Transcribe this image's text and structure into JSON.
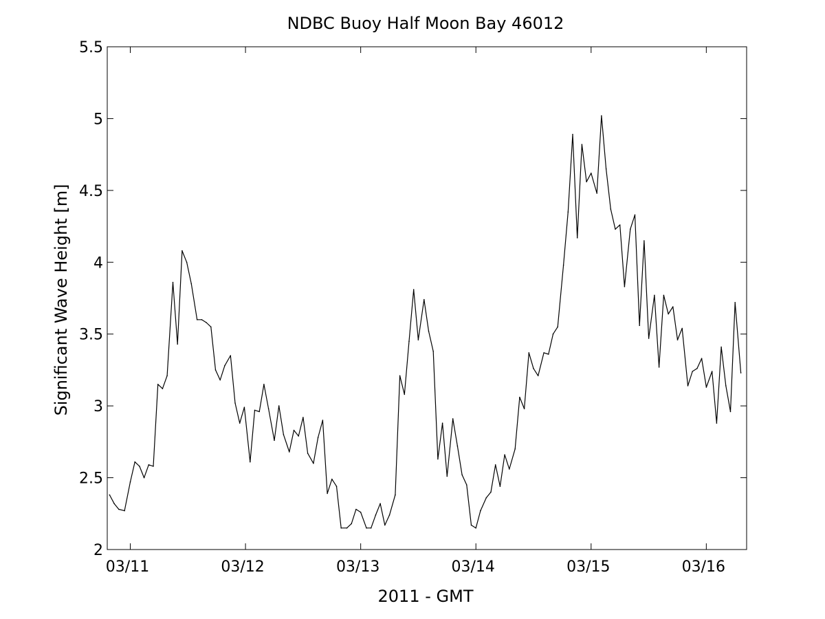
{
  "chart_data": {
    "type": "line",
    "title": "NDBC Buoy Half Moon Bay 46012",
    "xlabel": "2011 - GMT",
    "ylabel": "Significant Wave Height [m]",
    "xlim": [
      -0.2,
      5.35
    ],
    "ylim": [
      2,
      5.5
    ],
    "grid": false,
    "x_ticks": [
      {
        "value": 0,
        "label": "03/11"
      },
      {
        "value": 1,
        "label": "03/12"
      },
      {
        "value": 2,
        "label": "03/13"
      },
      {
        "value": 3,
        "label": "03/14"
      },
      {
        "value": 4,
        "label": "03/15"
      },
      {
        "value": 5,
        "label": "03/16"
      }
    ],
    "y_ticks": [
      {
        "value": 2,
        "label": "2"
      },
      {
        "value": 2.5,
        "label": "2.5"
      },
      {
        "value": 3,
        "label": "3"
      },
      {
        "value": 3.5,
        "label": "3.5"
      },
      {
        "value": 4,
        "label": "4"
      },
      {
        "value": 4.5,
        "label": "4.5"
      },
      {
        "value": 5,
        "label": "5"
      },
      {
        "value": 5.5,
        "label": "5.5"
      }
    ],
    "series": [
      {
        "color": "#000000",
        "points": [
          [
            -0.18,
            2.38
          ],
          [
            -0.14,
            2.32
          ],
          [
            -0.1,
            2.28
          ],
          [
            -0.05,
            2.27
          ],
          [
            0.0,
            2.47
          ],
          [
            0.04,
            2.61
          ],
          [
            0.08,
            2.58
          ],
          [
            0.12,
            2.5
          ],
          [
            0.16,
            2.59
          ],
          [
            0.2,
            2.58
          ],
          [
            0.24,
            3.15
          ],
          [
            0.28,
            3.12
          ],
          [
            0.32,
            3.21
          ],
          [
            0.37,
            3.86
          ],
          [
            0.41,
            3.43
          ],
          [
            0.45,
            4.08
          ],
          [
            0.49,
            4.0
          ],
          [
            0.53,
            3.85
          ],
          [
            0.58,
            3.6
          ],
          [
            0.62,
            3.6
          ],
          [
            0.66,
            3.58
          ],
          [
            0.7,
            3.55
          ],
          [
            0.74,
            3.25
          ],
          [
            0.78,
            3.18
          ],
          [
            0.82,
            3.28
          ],
          [
            0.87,
            3.35
          ],
          [
            0.91,
            3.02
          ],
          [
            0.95,
            2.88
          ],
          [
            0.99,
            2.99
          ],
          [
            1.04,
            2.61
          ],
          [
            1.08,
            2.97
          ],
          [
            1.12,
            2.96
          ],
          [
            1.16,
            3.15
          ],
          [
            1.2,
            2.98
          ],
          [
            1.25,
            2.76
          ],
          [
            1.29,
            3.0
          ],
          [
            1.33,
            2.8
          ],
          [
            1.38,
            2.68
          ],
          [
            1.42,
            2.83
          ],
          [
            1.46,
            2.79
          ],
          [
            1.5,
            2.92
          ],
          [
            1.54,
            2.67
          ],
          [
            1.59,
            2.6
          ],
          [
            1.63,
            2.78
          ],
          [
            1.67,
            2.9
          ],
          [
            1.71,
            2.39
          ],
          [
            1.75,
            2.49
          ],
          [
            1.79,
            2.44
          ],
          [
            1.83,
            2.15
          ],
          [
            1.88,
            2.15
          ],
          [
            1.92,
            2.18
          ],
          [
            1.96,
            2.28
          ],
          [
            2.0,
            2.26
          ],
          [
            2.05,
            2.15
          ],
          [
            2.09,
            2.15
          ],
          [
            2.13,
            2.24
          ],
          [
            2.17,
            2.32
          ],
          [
            2.21,
            2.17
          ],
          [
            2.25,
            2.24
          ],
          [
            2.3,
            2.38
          ],
          [
            2.34,
            3.21
          ],
          [
            2.38,
            3.08
          ],
          [
            2.42,
            3.45
          ],
          [
            2.46,
            3.81
          ],
          [
            2.5,
            3.46
          ],
          [
            2.55,
            3.74
          ],
          [
            2.59,
            3.52
          ],
          [
            2.63,
            3.38
          ],
          [
            2.67,
            2.63
          ],
          [
            2.71,
            2.88
          ],
          [
            2.75,
            2.51
          ],
          [
            2.8,
            2.91
          ],
          [
            2.84,
            2.72
          ],
          [
            2.88,
            2.52
          ],
          [
            2.92,
            2.45
          ],
          [
            2.96,
            2.17
          ],
          [
            3.0,
            2.15
          ],
          [
            3.04,
            2.27
          ],
          [
            3.09,
            2.36
          ],
          [
            3.13,
            2.4
          ],
          [
            3.17,
            2.59
          ],
          [
            3.21,
            2.44
          ],
          [
            3.25,
            2.66
          ],
          [
            3.29,
            2.56
          ],
          [
            3.34,
            2.7
          ],
          [
            3.38,
            3.06
          ],
          [
            3.42,
            2.98
          ],
          [
            3.46,
            3.37
          ],
          [
            3.5,
            3.26
          ],
          [
            3.54,
            3.21
          ],
          [
            3.59,
            3.37
          ],
          [
            3.63,
            3.36
          ],
          [
            3.67,
            3.5
          ],
          [
            3.71,
            3.55
          ],
          [
            3.76,
            3.98
          ],
          [
            3.8,
            4.35
          ],
          [
            3.84,
            4.89
          ],
          [
            3.88,
            4.17
          ],
          [
            3.92,
            4.82
          ],
          [
            3.96,
            4.56
          ],
          [
            4.0,
            4.62
          ],
          [
            4.05,
            4.48
          ],
          [
            4.09,
            5.02
          ],
          [
            4.13,
            4.65
          ],
          [
            4.17,
            4.37
          ],
          [
            4.21,
            4.23
          ],
          [
            4.25,
            4.26
          ],
          [
            4.29,
            3.83
          ],
          [
            4.34,
            4.23
          ],
          [
            4.38,
            4.33
          ],
          [
            4.42,
            3.56
          ],
          [
            4.46,
            4.15
          ],
          [
            4.5,
            3.47
          ],
          [
            4.55,
            3.77
          ],
          [
            4.59,
            3.27
          ],
          [
            4.63,
            3.77
          ],
          [
            4.67,
            3.64
          ],
          [
            4.71,
            3.69
          ],
          [
            4.75,
            3.46
          ],
          [
            4.79,
            3.54
          ],
          [
            4.84,
            3.14
          ],
          [
            4.88,
            3.24
          ],
          [
            4.92,
            3.26
          ],
          [
            4.96,
            3.33
          ],
          [
            5.0,
            3.13
          ],
          [
            5.05,
            3.24
          ],
          [
            5.09,
            2.88
          ],
          [
            5.13,
            3.41
          ],
          [
            5.17,
            3.14
          ],
          [
            5.21,
            2.96
          ],
          [
            5.25,
            3.72
          ],
          [
            5.3,
            3.23
          ]
        ]
      }
    ]
  }
}
